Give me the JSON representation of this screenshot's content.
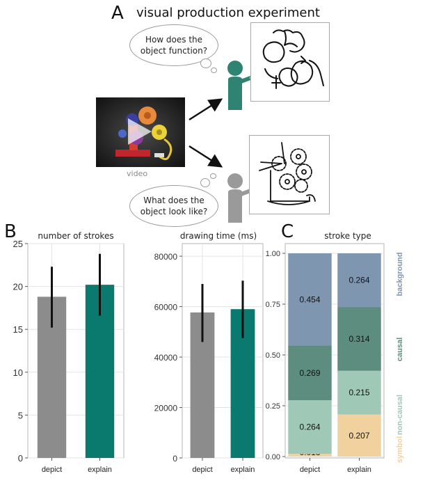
{
  "panel_a": {
    "letter": "A",
    "title": "visual production experiment",
    "video_label": "video",
    "explain_prompt_line1": "How does the",
    "explain_prompt_line2": "object function?",
    "depict_prompt_line1": "What does the",
    "depict_prompt_line2": "object look like?"
  },
  "panel_b": {
    "letter": "B"
  },
  "panel_c": {
    "letter": "C"
  },
  "colors": {
    "depict": "#8c8c8c",
    "explain": "#0b7a6e",
    "figure_explain": "#2e8373",
    "figure_depict": "#9a9a9a",
    "background": "#7f96b1",
    "causal": "#5c8d7f",
    "non_causal": "#a0c8b7",
    "symbol": "#f1d29f"
  },
  "chart_data": [
    {
      "type": "bar",
      "title": "number of strokes",
      "categories": [
        "depict",
        "explain"
      ],
      "values": [
        18.8,
        20.2
      ],
      "error_low": [
        15.2,
        16.6
      ],
      "error_high": [
        22.3,
        23.8
      ],
      "ylim": [
        0,
        25
      ],
      "yticks": [
        "0",
        "5",
        "10",
        "15",
        "20",
        "25"
      ],
      "grid": true
    },
    {
      "type": "bar",
      "title": "drawing time (ms)",
      "categories": [
        "depict",
        "explain"
      ],
      "values": [
        57700,
        59000
      ],
      "error_low": [
        46000,
        47500
      ],
      "error_high": [
        69000,
        70300
      ],
      "ylim": [
        0,
        85000
      ],
      "yticks": [
        "0",
        "20000",
        "40000",
        "60000",
        "80000"
      ],
      "grid": true
    },
    {
      "type": "bar",
      "subtype": "stacked",
      "title": "stroke type",
      "categories": [
        "depict",
        "explain"
      ],
      "ylim": [
        0,
        1
      ],
      "yticks": [
        "0.00",
        "0.25",
        "0.50",
        "0.75",
        "1.00"
      ],
      "legend_position": "right",
      "series": [
        {
          "name": "symbol",
          "values": [
            0.013,
            0.207
          ],
          "labels": [
            "0.013",
            "0.207"
          ]
        },
        {
          "name": "non-causal",
          "values": [
            0.264,
            0.215
          ],
          "labels": [
            "0.264",
            "0.215"
          ]
        },
        {
          "name": "causal",
          "values": [
            0.269,
            0.314
          ],
          "labels": [
            "0.269",
            "0.314"
          ]
        },
        {
          "name": "background",
          "values": [
            0.454,
            0.264
          ],
          "labels": [
            "0.454",
            "0.264"
          ]
        }
      ]
    }
  ]
}
